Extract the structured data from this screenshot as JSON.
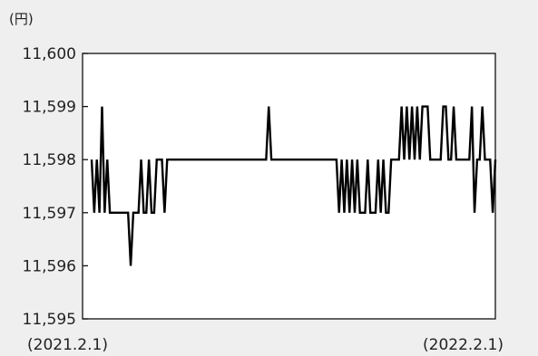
{
  "chart_data": {
    "type": "line",
    "ylabel": "(円)",
    "ylim": [
      11595,
      11600
    ],
    "yticks": [
      "11,600",
      "11,599",
      "11,598",
      "11,597",
      "11,596",
      "11,595"
    ],
    "xlabel_start": "(2021.2.1)",
    "xlabel_end": "(2022.2.1)",
    "grid": false,
    "series": [
      {
        "values": [
          11598,
          11597,
          11598,
          11597,
          11599,
          11597,
          11598,
          11597,
          11597,
          11597,
          11597,
          11597,
          11597,
          11597,
          11597,
          11596,
          11597,
          11597,
          11597,
          11598,
          11597,
          11597,
          11598,
          11597,
          11597,
          11598,
          11598,
          11598,
          11597,
          11598,
          11598,
          11598,
          11598,
          11598,
          11598,
          11598,
          11598,
          11598,
          11598,
          11598,
          11598,
          11598,
          11598,
          11598,
          11598,
          11598,
          11598,
          11598,
          11598,
          11598,
          11598,
          11598,
          11598,
          11598,
          11598,
          11598,
          11598,
          11598,
          11598,
          11598,
          11598,
          11598,
          11598,
          11598,
          11598,
          11598,
          11598,
          11598,
          11599,
          11598,
          11598,
          11598,
          11598,
          11598,
          11598,
          11598,
          11598,
          11598,
          11598,
          11598,
          11598,
          11598,
          11598,
          11598,
          11598,
          11598,
          11598,
          11598,
          11598,
          11598,
          11598,
          11598,
          11598,
          11598,
          11598,
          11597,
          11598,
          11597,
          11598,
          11597,
          11598,
          11597,
          11598,
          11597,
          11597,
          11597,
          11598,
          11597,
          11597,
          11597,
          11598,
          11597,
          11598,
          11597,
          11597,
          11598,
          11598,
          11598,
          11598,
          11599,
          11598,
          11599,
          11598,
          11599,
          11598,
          11599,
          11598,
          11599,
          11599,
          11599,
          11598,
          11598,
          11598,
          11598,
          11598,
          11599,
          11599,
          11598,
          11598,
          11599,
          11598,
          11598,
          11598,
          11598,
          11598,
          11598,
          11599,
          11597,
          11598,
          11598,
          11599,
          11598,
          11598,
          11598,
          11597,
          11598
        ]
      }
    ]
  }
}
